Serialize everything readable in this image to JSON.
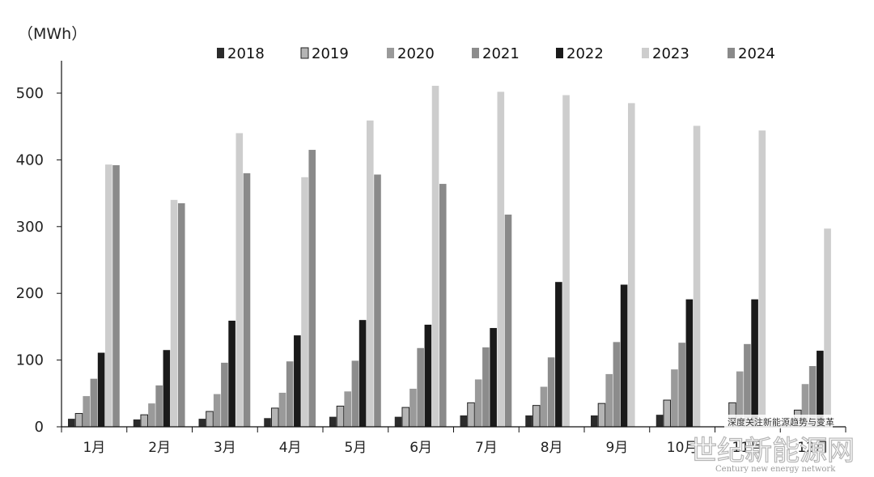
{
  "chart_data": {
    "type": "bar",
    "unit_label": "（MWh）",
    "categories": [
      "1月",
      "2月",
      "3月",
      "4月",
      "5月",
      "6月",
      "7月",
      "8月",
      "9月",
      "10月",
      "11月",
      "12月"
    ],
    "ylim": [
      0,
      550
    ],
    "yticks": [
      0,
      100,
      200,
      300,
      400,
      500
    ],
    "grid": false,
    "legend_position": "top",
    "series": [
      {
        "name": "2018",
        "color": "#2b2b2b",
        "values": [
          12,
          11,
          12,
          13,
          15,
          15,
          17,
          17,
          17,
          18,
          null,
          null
        ]
      },
      {
        "name": "2019",
        "color": "#b4b4b4",
        "outline": "#222222",
        "values": [
          20,
          18,
          23,
          28,
          31,
          29,
          36,
          32,
          35,
          40,
          36,
          25
        ]
      },
      {
        "name": "2020",
        "color": "#9a9a9a",
        "values": [
          46,
          35,
          49,
          51,
          53,
          57,
          71,
          60,
          79,
          86,
          83,
          64
        ]
      },
      {
        "name": "2021",
        "color": "#8c8c8c",
        "values": [
          72,
          62,
          96,
          98,
          99,
          118,
          119,
          104,
          127,
          126,
          124,
          91
        ]
      },
      {
        "name": "2022",
        "color": "#1a1a1a",
        "values": [
          111,
          115,
          159,
          137,
          160,
          153,
          148,
          217,
          213,
          191,
          191,
          114
        ]
      },
      {
        "name": "2023",
        "color": "#cdcdcd",
        "values": [
          393,
          340,
          440,
          374,
          459,
          511,
          502,
          497,
          485,
          451,
          444,
          297
        ]
      },
      {
        "name": "2024",
        "color": "#8a8a8a",
        "values": [
          392,
          335,
          380,
          415,
          378,
          364,
          318,
          null,
          null,
          null,
          null,
          null
        ]
      }
    ]
  },
  "watermark": {
    "slogan": "深度关注新能源趋势与变革",
    "cn": "世纪新能源网",
    "en": "Century new energy network"
  }
}
